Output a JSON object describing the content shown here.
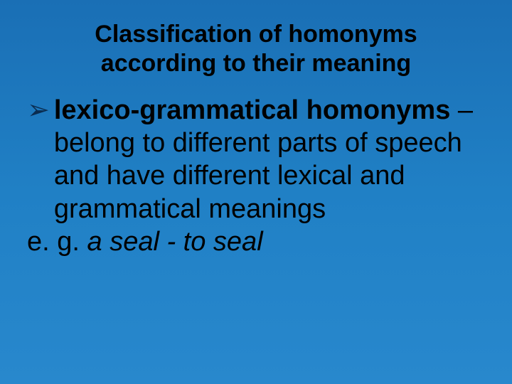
{
  "slide": {
    "title_line1": "Classification of homonyms",
    "title_line2": "according to their meaning",
    "bullet_glyph": "➢",
    "term": "lexico-grammatical homonyms",
    "dash": " – ",
    "definition": "belong to different parts of speech and have different lexical and grammatical meanings",
    "eg_label": "e. g. ",
    "example": "a seal  - to seal"
  },
  "style": {
    "background_gradient_top": "#1a6fb5",
    "background_gradient_bottom": "#2888cd",
    "title_fontsize": 34,
    "title_weight": "bold",
    "title_color": "#000000",
    "body_fontsize": 38,
    "body_color": "#000000",
    "bullet_color": "#0a2c50",
    "font_family": "Arial",
    "slide_width": 720,
    "slide_height": 540
  }
}
